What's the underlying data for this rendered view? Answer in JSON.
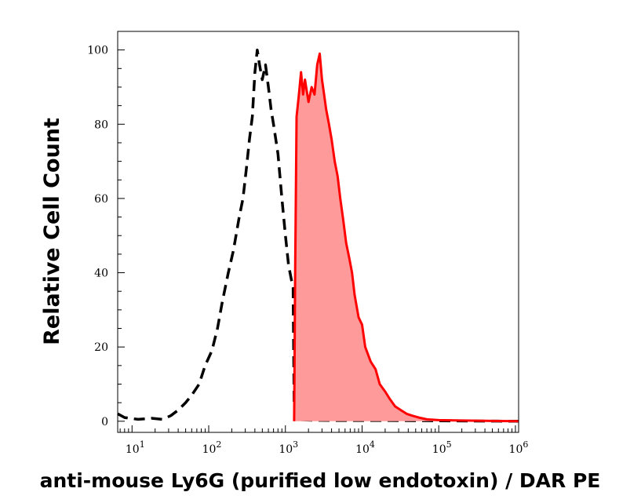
{
  "chart_data": {
    "type": "area",
    "xlabel": "anti-mouse Ly6G (purified low endotoxin) / DAR PE",
    "ylabel": "Relative Cell Count",
    "x_scale": "log",
    "xlim": [
      6.5,
      1100000
    ],
    "ylim": [
      -3,
      105
    ],
    "grid": false,
    "x_ticks": [
      {
        "value": 10,
        "base": "10",
        "exp": "1"
      },
      {
        "value": 100,
        "base": "10",
        "exp": "2"
      },
      {
        "value": 1000,
        "base": "10",
        "exp": "3"
      },
      {
        "value": 10000,
        "base": "10",
        "exp": "4"
      },
      {
        "value": 100000,
        "base": "10",
        "exp": "5"
      },
      {
        "value": 1000000,
        "base": "10",
        "exp": "6"
      }
    ],
    "y_ticks": [
      0,
      20,
      40,
      60,
      80,
      100
    ],
    "series": [
      {
        "style": "dashed",
        "color": "#000000",
        "fill": "none",
        "points": [
          [
            6.5,
            2
          ],
          [
            8,
            1
          ],
          [
            12,
            0.5
          ],
          [
            18,
            0.8
          ],
          [
            25,
            0.5
          ],
          [
            32,
            1.5
          ],
          [
            40,
            3
          ],
          [
            50,
            5
          ],
          [
            60,
            7
          ],
          [
            75,
            10
          ],
          [
            90,
            15
          ],
          [
            110,
            19
          ],
          [
            130,
            25
          ],
          [
            150,
            32
          ],
          [
            180,
            40
          ],
          [
            210,
            46
          ],
          [
            250,
            55
          ],
          [
            280,
            60
          ],
          [
            310,
            68
          ],
          [
            340,
            76
          ],
          [
            370,
            82
          ],
          [
            400,
            94
          ],
          [
            430,
            100
          ],
          [
            460,
            96
          ],
          [
            500,
            92
          ],
          [
            550,
            96
          ],
          [
            600,
            90
          ],
          [
            650,
            84
          ],
          [
            700,
            80
          ],
          [
            800,
            72
          ],
          [
            900,
            60
          ],
          [
            1000,
            50
          ],
          [
            1100,
            42
          ],
          [
            1200,
            38
          ],
          [
            1260,
            36
          ],
          [
            1300,
            5
          ],
          [
            1350,
            0.5
          ],
          [
            2000,
            0.3
          ],
          [
            5000,
            0.2
          ],
          [
            20000,
            0.2
          ],
          [
            1100000,
            0
          ]
        ]
      },
      {
        "style": "solid",
        "color": "#ff0000",
        "fill": "#ff9a9a",
        "points": [
          [
            1300,
            0
          ],
          [
            1340,
            40
          ],
          [
            1400,
            82
          ],
          [
            1500,
            88
          ],
          [
            1600,
            94
          ],
          [
            1700,
            88
          ],
          [
            1800,
            92
          ],
          [
            2000,
            86
          ],
          [
            2200,
            90
          ],
          [
            2400,
            88
          ],
          [
            2600,
            96
          ],
          [
            2800,
            99
          ],
          [
            3000,
            92
          ],
          [
            3200,
            88
          ],
          [
            3400,
            84
          ],
          [
            3700,
            80
          ],
          [
            4000,
            76
          ],
          [
            4400,
            70
          ],
          [
            4800,
            66
          ],
          [
            5200,
            60
          ],
          [
            5700,
            54
          ],
          [
            6200,
            48
          ],
          [
            6800,
            44
          ],
          [
            7400,
            40
          ],
          [
            8000,
            34
          ],
          [
            9000,
            28
          ],
          [
            10000,
            26
          ],
          [
            11000,
            20
          ],
          [
            13000,
            16
          ],
          [
            15000,
            14
          ],
          [
            17000,
            10
          ],
          [
            20000,
            8
          ],
          [
            23000,
            6
          ],
          [
            27000,
            4
          ],
          [
            32000,
            3
          ],
          [
            38000,
            2
          ],
          [
            45000,
            1.5
          ],
          [
            55000,
            1
          ],
          [
            70000,
            0.5
          ],
          [
            100000,
            0.3
          ],
          [
            200000,
            0.2
          ],
          [
            1100000,
            0
          ]
        ]
      }
    ]
  }
}
